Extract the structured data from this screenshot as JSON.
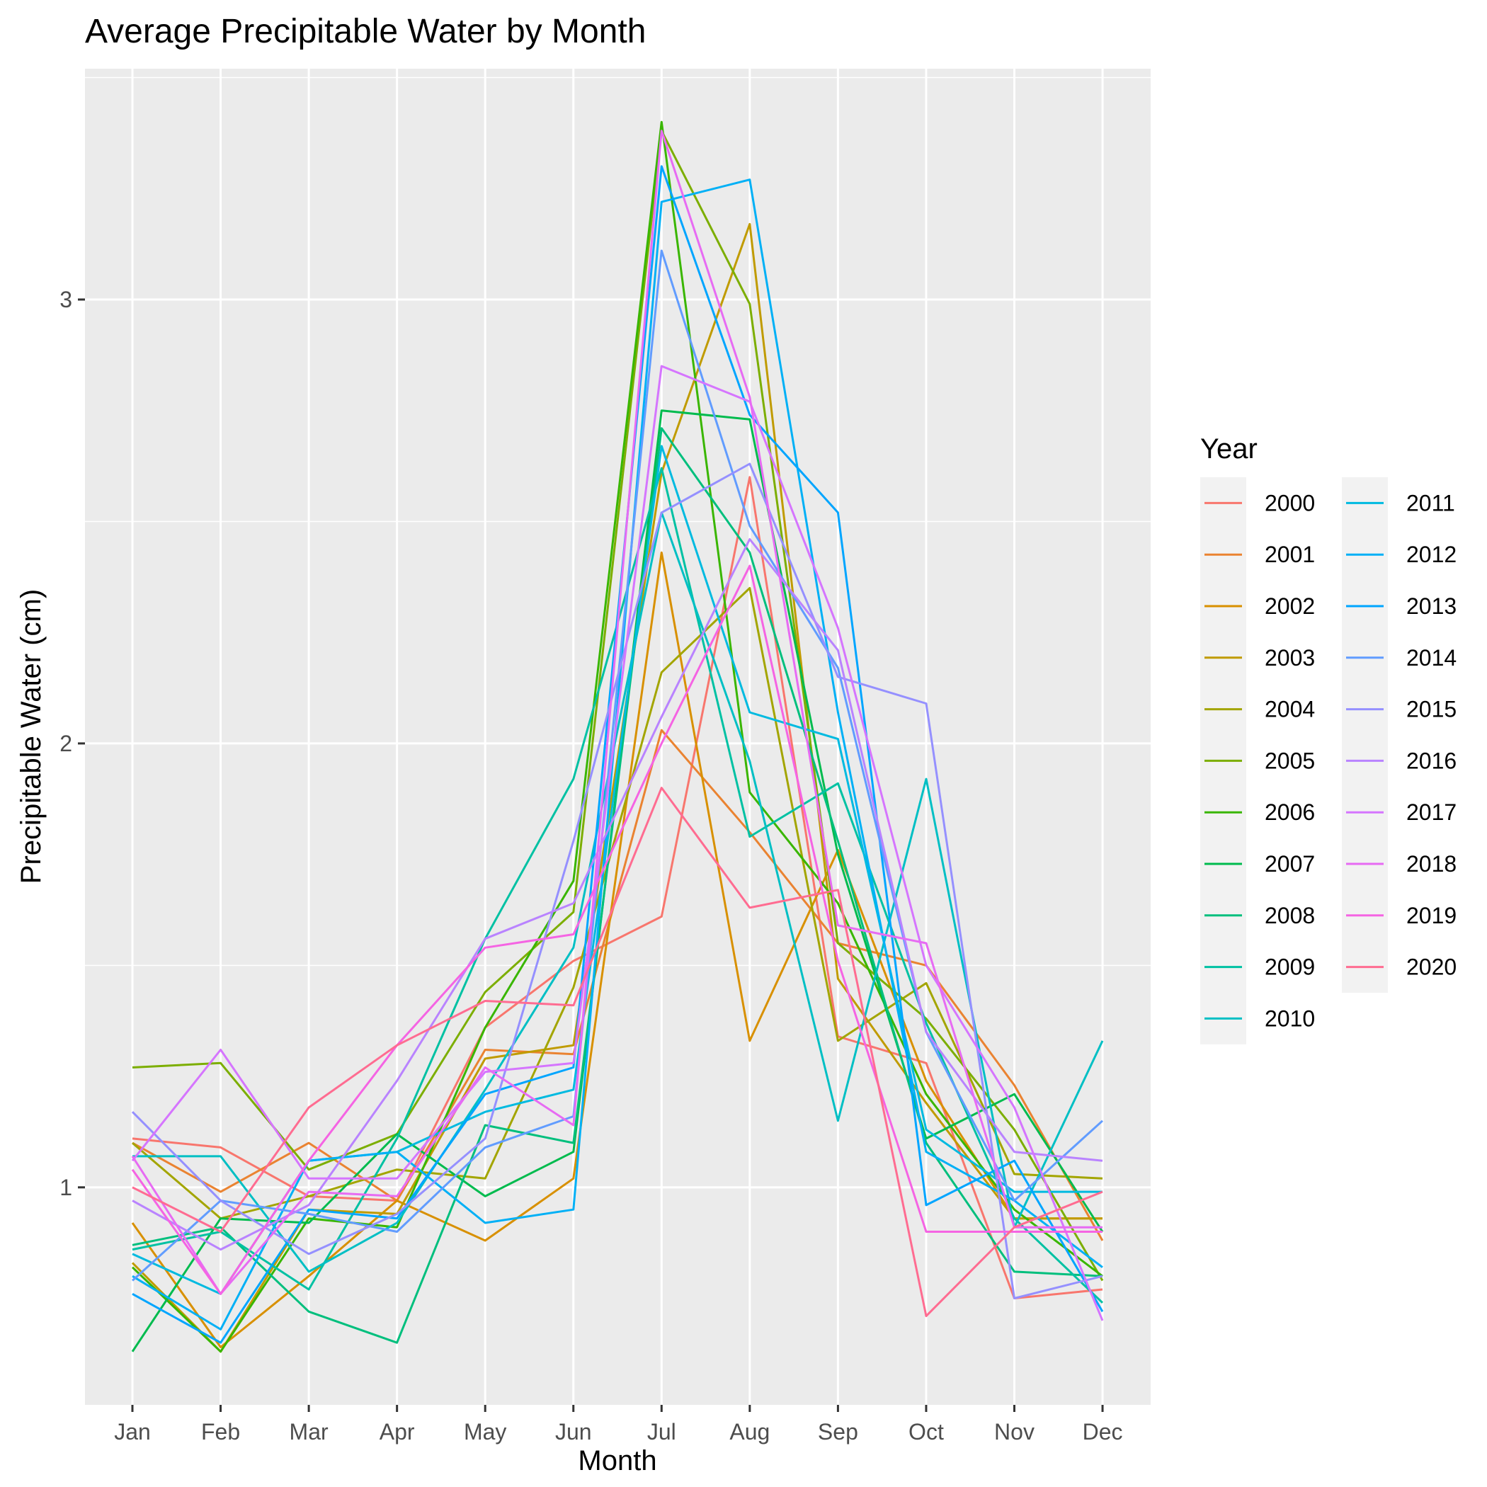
{
  "chart_data": {
    "type": "line",
    "title": "Average Precipitable Water by Month",
    "xlabel": "Month",
    "ylabel": "Precipitable Water (cm)",
    "categories": [
      "Jan",
      "Feb",
      "Mar",
      "Apr",
      "May",
      "Jun",
      "Jul",
      "Aug",
      "Sep",
      "Oct",
      "Nov",
      "Dec"
    ],
    "yticks": [
      1,
      2,
      3
    ],
    "ylim": [
      0.51,
      3.52
    ],
    "grid": true,
    "legend": {
      "title": "Year",
      "position": "right"
    },
    "series": [
      {
        "name": "2000",
        "color": "#F8766D",
        "values": [
          1.11,
          1.09,
          0.98,
          0.97,
          1.36,
          1.51,
          1.61,
          2.6,
          1.34,
          1.28,
          0.75,
          0.77
        ]
      },
      {
        "name": "2001",
        "color": "#EA8331",
        "values": [
          1.1,
          0.99,
          1.1,
          0.97,
          1.31,
          1.3,
          2.03,
          1.8,
          1.55,
          1.5,
          1.23,
          0.88
        ]
      },
      {
        "name": "2002",
        "color": "#D89000",
        "values": [
          0.92,
          0.64,
          0.8,
          0.97,
          0.88,
          1.02,
          2.43,
          1.33,
          1.76,
          1.24,
          0.93,
          0.93
        ]
      },
      {
        "name": "2003",
        "color": "#C09B00",
        "values": [
          0.83,
          0.63,
          0.95,
          0.94,
          1.29,
          1.32,
          2.61,
          3.17,
          1.47,
          1.19,
          0.93,
          0.93
        ]
      },
      {
        "name": "2004",
        "color": "#A3A500",
        "values": [
          1.1,
          0.93,
          0.98,
          1.04,
          1.02,
          1.45,
          2.16,
          2.35,
          1.33,
          1.46,
          1.03,
          1.02
        ]
      },
      {
        "name": "2005",
        "color": "#7CAE00",
        "values": [
          1.27,
          1.28,
          1.04,
          1.12,
          1.44,
          1.62,
          3.38,
          2.99,
          1.55,
          1.38,
          1.13,
          0.79
        ]
      },
      {
        "name": "2006",
        "color": "#39B600",
        "values": [
          0.82,
          0.63,
          0.93,
          0.91,
          1.36,
          1.69,
          3.4,
          1.89,
          1.64,
          1.21,
          0.95,
          0.8
        ]
      },
      {
        "name": "2007",
        "color": "#00BB4E",
        "values": [
          0.63,
          0.93,
          0.92,
          1.12,
          0.98,
          1.08,
          2.75,
          2.73,
          1.75,
          1.11,
          1.21,
          0.9
        ]
      },
      {
        "name": "2008",
        "color": "#00BF7D",
        "values": [
          0.87,
          0.91,
          0.72,
          0.65,
          1.14,
          1.1,
          2.71,
          2.43,
          1.78,
          1.1,
          0.81,
          0.8
        ]
      },
      {
        "name": "2009",
        "color": "#00C1A3",
        "values": [
          0.86,
          0.9,
          0.77,
          1.11,
          1.56,
          1.92,
          2.62,
          1.79,
          1.91,
          1.37,
          0.93,
          0.74
        ]
      },
      {
        "name": "2010",
        "color": "#00BFC4",
        "values": [
          1.07,
          1.07,
          0.81,
          0.92,
          1.22,
          1.54,
          2.52,
          1.96,
          1.15,
          1.92,
          0.91,
          1.33
        ]
      },
      {
        "name": "2011",
        "color": "#00BAE0",
        "values": [
          0.85,
          0.76,
          1.06,
          1.08,
          1.17,
          1.22,
          2.67,
          2.07,
          2.01,
          1.13,
          0.99,
          0.99
        ]
      },
      {
        "name": "2012",
        "color": "#00B0F6",
        "values": [
          0.8,
          0.68,
          1.06,
          1.08,
          0.92,
          0.95,
          3.22,
          3.27,
          2.07,
          1.08,
          0.97,
          0.82
        ]
      },
      {
        "name": "2013",
        "color": "#00A5FF",
        "values": [
          0.76,
          0.65,
          0.95,
          0.93,
          1.21,
          1.27,
          3.3,
          2.74,
          2.52,
          0.96,
          1.06,
          0.72
        ]
      },
      {
        "name": "2014",
        "color": "#619CFF",
        "values": [
          0.79,
          0.97,
          0.94,
          0.9,
          1.09,
          1.16,
          3.11,
          2.49,
          2.17,
          1.35,
          0.97,
          1.15
        ]
      },
      {
        "name": "2015",
        "color": "#9590FF",
        "values": [
          1.17,
          0.97,
          0.85,
          0.94,
          1.11,
          1.78,
          2.52,
          2.63,
          2.15,
          2.09,
          0.75,
          0.8
        ]
      },
      {
        "name": "2016",
        "color": "#B983FF",
        "values": [
          0.97,
          0.86,
          0.96,
          1.24,
          1.56,
          1.64,
          2.06,
          2.46,
          2.21,
          1.35,
          1.08,
          1.06
        ]
      },
      {
        "name": "2017",
        "color": "#D575FE",
        "values": [
          1.06,
          1.31,
          1.02,
          1.02,
          1.26,
          1.28,
          2.85,
          2.77,
          2.26,
          1.5,
          1.18,
          0.7
        ]
      },
      {
        "name": "2018",
        "color": "#E76BF3",
        "values": [
          1.07,
          0.76,
          0.99,
          0.98,
          1.27,
          1.14,
          3.38,
          2.78,
          1.59,
          1.55,
          0.91,
          0.91
        ]
      },
      {
        "name": "2019",
        "color": "#F564E3",
        "values": [
          1.04,
          0.76,
          1.06,
          1.32,
          1.54,
          1.57,
          2.0,
          2.4,
          1.51,
          0.9,
          0.9,
          0.9
        ]
      },
      {
        "name": "2020",
        "color": "#FF6C91",
        "values": [
          1.0,
          0.9,
          1.18,
          1.32,
          1.42,
          1.41,
          1.9,
          1.63,
          1.67,
          0.71,
          0.91,
          0.99
        ]
      }
    ]
  }
}
